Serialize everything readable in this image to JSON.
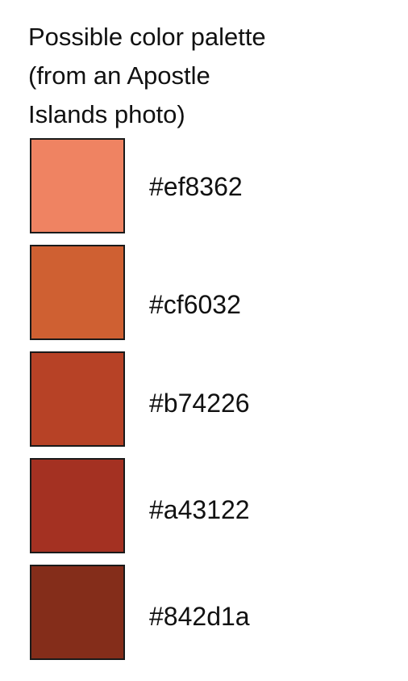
{
  "title": {
    "lines": [
      "Possible color palette",
      "(from an Apostle",
      "Islands photo)"
    ]
  },
  "swatches": [
    {
      "hex": "#ef8362",
      "label": "#ef8362"
    },
    {
      "hex": "#cf6032",
      "label": "#cf6032"
    },
    {
      "hex": "#b74226",
      "label": "#b74226"
    },
    {
      "hex": "#a43122",
      "label": "#a43122"
    },
    {
      "hex": "#842d1a",
      "label": "#842d1a"
    }
  ]
}
